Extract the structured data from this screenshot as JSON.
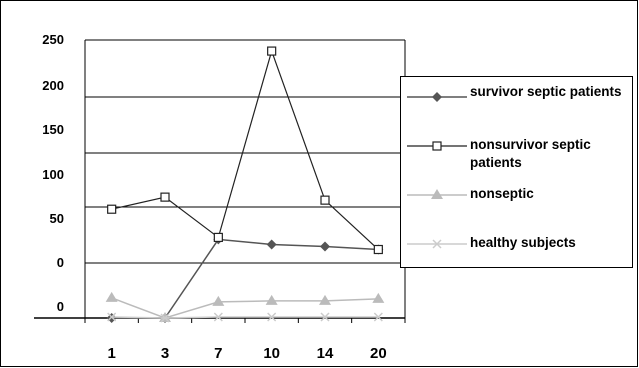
{
  "chart_data": {
    "type": "line",
    "categories": [
      "1",
      "3",
      "7",
      "10",
      "14",
      "20"
    ],
    "y_tick_labels": [
      "250",
      "200",
      "150",
      "100",
      "50",
      "0",
      "0"
    ],
    "legend_position": "right",
    "grid": "horizontal",
    "series": [
      {
        "name": "survivor septic patients",
        "marker": "diamond",
        "color": "#555555",
        "values": [
          0,
          0,
          78,
          73,
          71,
          68
        ]
      },
      {
        "name": "nonsurvivor septic patients",
        "marker": "open-square",
        "color": "#222222",
        "values": [
          108,
          120,
          80,
          265,
          117,
          68
        ]
      },
      {
        "name": "nonseptic",
        "marker": "triangle",
        "color": "#bbbbbb",
        "values": [
          20,
          0,
          16,
          17,
          17,
          19
        ]
      },
      {
        "name": "healthy subjects",
        "marker": "x",
        "color": "#cccccc",
        "values": [
          1,
          0,
          1,
          1,
          1,
          1
        ]
      }
    ]
  }
}
